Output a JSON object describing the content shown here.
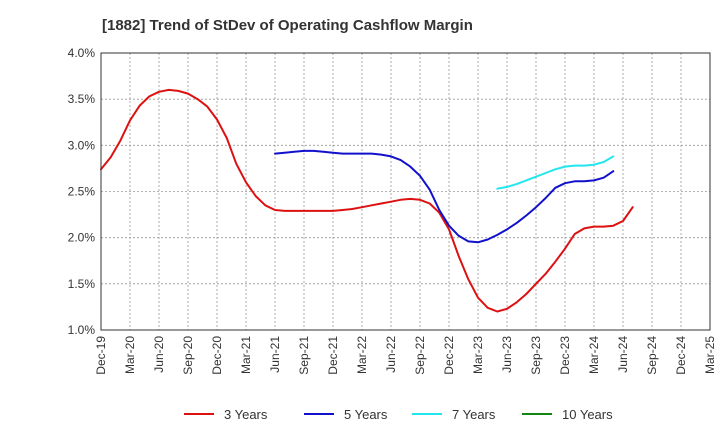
{
  "chart_data": {
    "type": "line",
    "title": "[1882]  Trend of StDev of Operating Cashflow Margin",
    "xlabel": "",
    "ylabel": "",
    "ylim": [
      1.0,
      4.0
    ],
    "yticks": [
      "1.0%",
      "1.5%",
      "2.0%",
      "2.5%",
      "3.0%",
      "3.5%",
      "4.0%"
    ],
    "ytick_values": [
      1.0,
      1.5,
      2.0,
      2.5,
      3.0,
      3.5,
      4.0
    ],
    "xticks": [
      "Dec-19",
      "Mar-20",
      "Jun-20",
      "Sep-20",
      "Dec-20",
      "Mar-21",
      "Jun-21",
      "Sep-21",
      "Dec-21",
      "Mar-22",
      "Jun-22",
      "Sep-22",
      "Dec-22",
      "Mar-23",
      "Jun-23",
      "Sep-23",
      "Dec-23",
      "Mar-24",
      "Jun-24",
      "Sep-24",
      "Dec-24",
      "Mar-25"
    ],
    "grid": true,
    "legend_position": "bottom",
    "series": [
      {
        "name": "3 Years",
        "color": "#dd1111",
        "start_index": 0,
        "values": [
          2.74,
          2.87,
          3.05,
          3.27,
          3.43,
          3.53,
          3.58,
          3.6,
          3.59,
          3.56,
          3.5,
          3.42,
          3.28,
          3.08,
          2.8,
          2.6,
          2.45,
          2.35,
          2.3,
          2.29,
          2.29,
          2.29,
          2.29,
          2.29,
          2.29,
          2.3,
          2.31,
          2.33,
          2.35,
          2.37,
          2.39,
          2.41,
          2.42,
          2.41,
          2.37,
          2.27,
          2.09,
          1.8,
          1.55,
          1.35,
          1.24,
          1.2,
          1.23,
          1.3,
          1.39,
          1.5,
          1.61,
          1.74,
          1.88,
          2.04,
          2.1,
          2.12,
          2.12,
          2.13,
          2.18,
          2.33
        ]
      },
      {
        "name": "5 Years",
        "color": "#1111cc",
        "start_index": 18,
        "values": [
          2.91,
          2.92,
          2.93,
          2.94,
          2.94,
          2.93,
          2.92,
          2.91,
          2.91,
          2.91,
          2.91,
          2.9,
          2.88,
          2.84,
          2.77,
          2.67,
          2.52,
          2.3,
          2.13,
          2.02,
          1.96,
          1.95,
          1.98,
          2.03,
          2.09,
          2.16,
          2.24,
          2.33,
          2.43,
          2.54,
          2.59,
          2.61,
          2.61,
          2.62,
          2.65,
          2.72
        ]
      },
      {
        "name": "7 Years",
        "color": "#22e5ee",
        "start_index": 41,
        "values": [
          2.53,
          2.55,
          2.58,
          2.62,
          2.66,
          2.7,
          2.74,
          2.77,
          2.78,
          2.78,
          2.79,
          2.82,
          2.88
        ]
      },
      {
        "name": "10 Years",
        "color": "#118811",
        "start_index": 0,
        "values": []
      }
    ]
  }
}
